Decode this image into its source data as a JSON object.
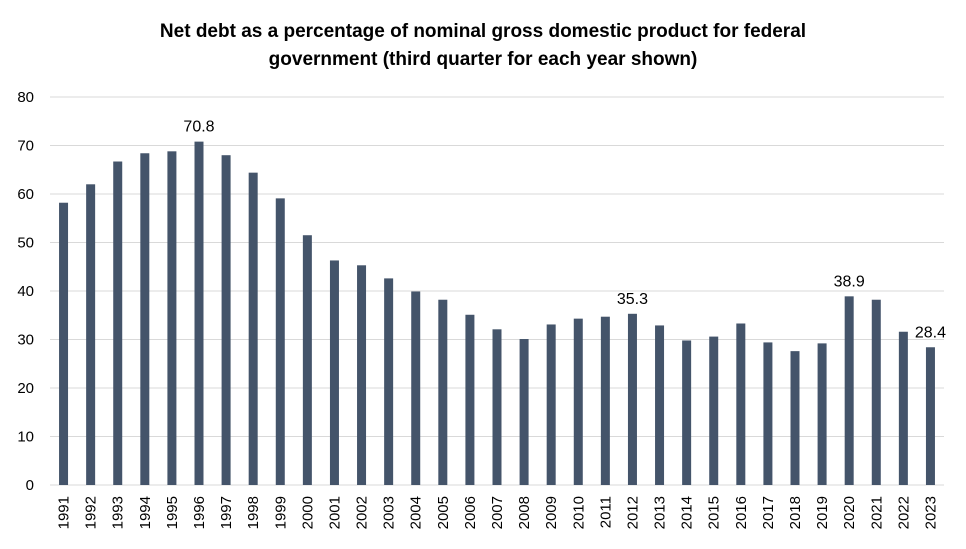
{
  "chart_data": {
    "type": "bar",
    "title_lines": [
      "Net debt as a percentage of nominal gross domestic product for federal",
      "government (third quarter for each year shown)"
    ],
    "xlabel": "",
    "ylabel": "",
    "ylim": [
      0,
      80
    ],
    "yticks": [
      "0",
      "10",
      "20",
      "30",
      "40",
      "50",
      "60",
      "70",
      "80"
    ],
    "grid": true,
    "legend": "none",
    "bar_color": "#44546a",
    "grid_color": "#d9d9d9",
    "categories": [
      "1991",
      "1992",
      "1993",
      "1994",
      "1995",
      "1996",
      "1997",
      "1998",
      "1999",
      "2000",
      "2001",
      "2002",
      "2003",
      "2004",
      "2005",
      "2006",
      "2007",
      "2008",
      "2009",
      "2010",
      "2011",
      "2012",
      "2013",
      "2014",
      "2015",
      "2016",
      "2017",
      "2018",
      "2019",
      "2020",
      "2021",
      "2022",
      "2023"
    ],
    "values": [
      58.2,
      62.0,
      66.7,
      68.4,
      68.8,
      70.8,
      68.0,
      64.4,
      59.1,
      51.5,
      46.3,
      45.3,
      42.6,
      39.9,
      38.2,
      35.1,
      32.1,
      30.1,
      33.1,
      34.3,
      34.7,
      35.3,
      32.9,
      29.8,
      30.6,
      33.3,
      29.4,
      27.6,
      29.2,
      38.9,
      38.2,
      31.6,
      28.4
    ],
    "data_labels": [
      {
        "category": "1996",
        "text": "70.8"
      },
      {
        "category": "2012",
        "text": "35.3"
      },
      {
        "category": "2020",
        "text": "38.9"
      },
      {
        "category": "2023",
        "text": "28.4"
      }
    ]
  }
}
